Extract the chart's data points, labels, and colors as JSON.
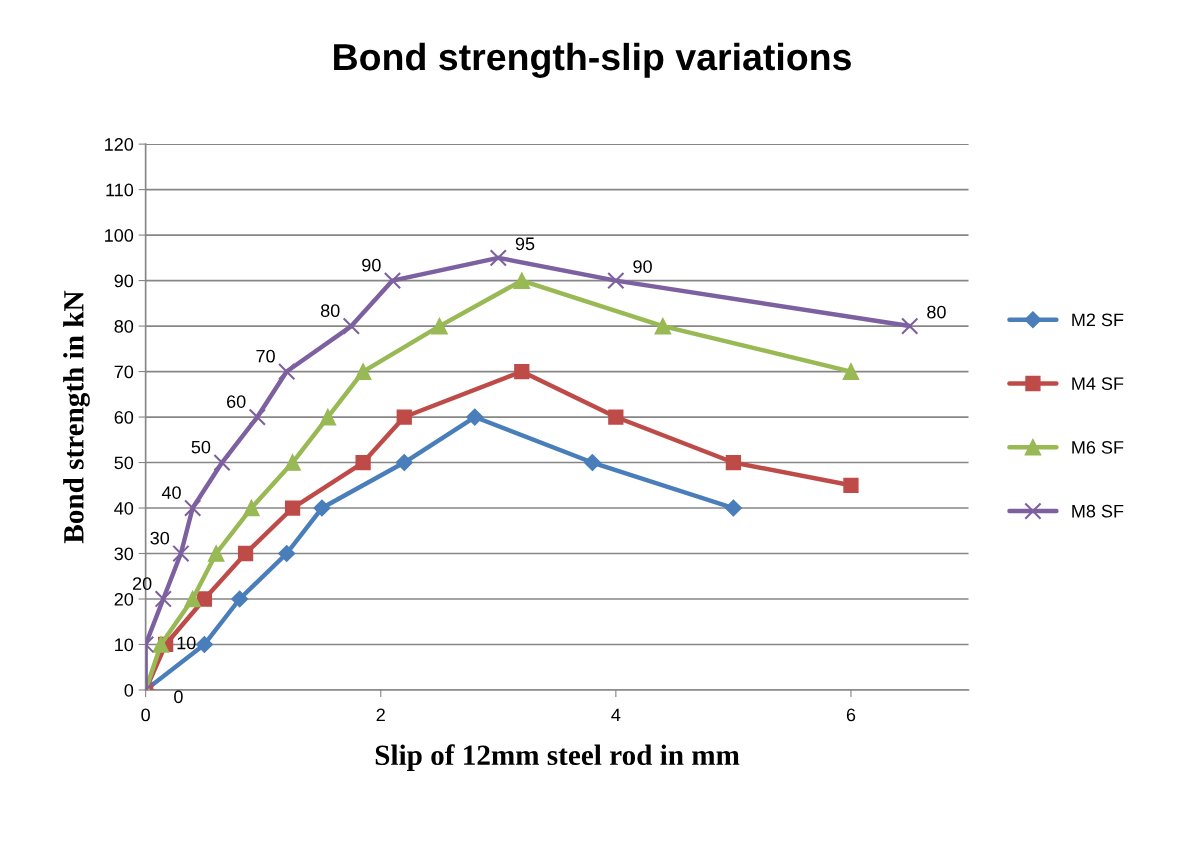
{
  "chart_data": {
    "type": "line",
    "title": "Bond strength-slip variations",
    "xlabel": "Slip of 12mm steel rod in mm",
    "ylabel": "Bond strength in kN",
    "xlim": [
      0,
      7
    ],
    "xticks": [
      0,
      2,
      4,
      6
    ],
    "ylim": [
      0,
      120
    ],
    "yticks": [
      0,
      10,
      20,
      30,
      40,
      50,
      60,
      70,
      80,
      90,
      100,
      110,
      120
    ],
    "grid": "y",
    "legend": "right",
    "line_style": "solid",
    "series": [
      {
        "name": "M2 SF",
        "color": "#4a7ebb",
        "marker": "diamond",
        "x": [
          0,
          0.5,
          0.8,
          1.2,
          1.5,
          2.2,
          2.8,
          3.8,
          5.0
        ],
        "values": [
          0,
          10,
          20,
          30,
          40,
          50,
          60,
          50,
          40
        ]
      },
      {
        "name": "M4 SF",
        "color": "#be4b48",
        "marker": "square",
        "x": [
          0,
          0.17,
          0.5,
          0.85,
          1.25,
          1.85,
          2.2,
          3.2,
          4.0,
          5.0,
          6.0
        ],
        "values": [
          0,
          10,
          20,
          30,
          40,
          50,
          60,
          70,
          60,
          50,
          45
        ]
      },
      {
        "name": "M6 SF",
        "color": "#98b954",
        "marker": "triangle",
        "x": [
          0,
          0.13,
          0.4,
          0.6,
          0.9,
          1.25,
          1.55,
          1.85,
          2.5,
          3.2,
          4.4,
          6.0
        ],
        "values": [
          0,
          10,
          20,
          30,
          40,
          50,
          60,
          70,
          80,
          90,
          80,
          70
        ]
      },
      {
        "name": "M8 SF",
        "color": "#7d60a0",
        "marker": "cross",
        "x": [
          0,
          0,
          0.15,
          0.3,
          0.4,
          0.65,
          0.95,
          1.2,
          1.75,
          2.1,
          3.0,
          4.0,
          6.5
        ],
        "values": [
          0,
          10,
          20,
          30,
          40,
          50,
          60,
          70,
          80,
          90,
          95,
          90,
          80
        ],
        "data_labels": true
      }
    ]
  }
}
